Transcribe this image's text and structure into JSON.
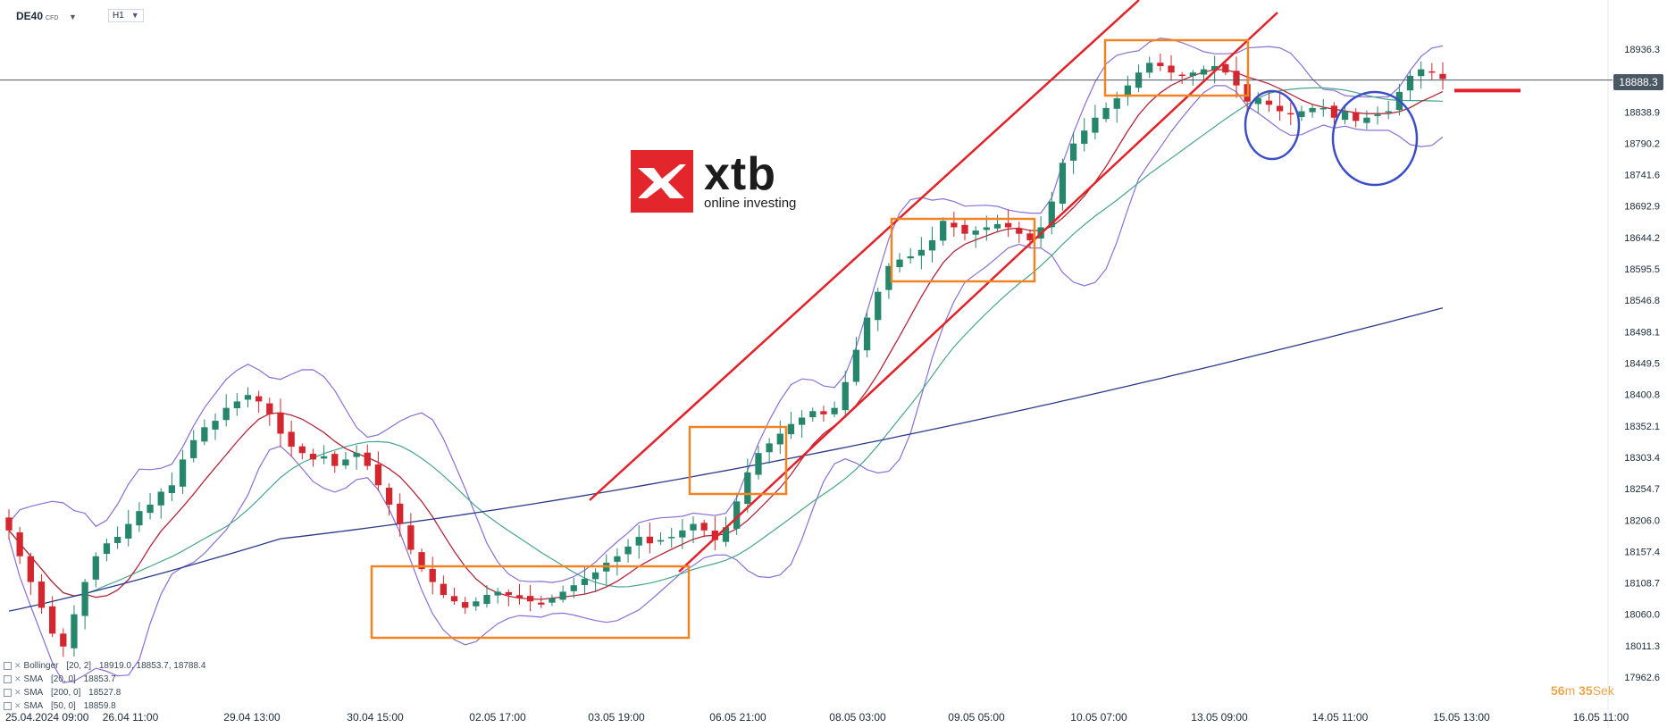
{
  "header": {
    "symbol": "DE40",
    "instrument_type": "CFD",
    "timeframe": "H1"
  },
  "logo": {
    "name": "xtb",
    "tagline": "online investing"
  },
  "legend": [
    {
      "label": "Bollinger",
      "params": "[20, 2]",
      "values": "18919.0, 18853.7, 18788.4"
    },
    {
      "label": "SMA",
      "params": "[20, 0]",
      "values": "18853.7"
    },
    {
      "label": "SMA",
      "params": "[200, 0]",
      "values": "18527.8"
    },
    {
      "label": "SMA",
      "params": "[50, 0]",
      "values": "18859.8"
    }
  ],
  "countdown": {
    "minutes": "56",
    "minutes_unit": "m",
    "seconds": "35",
    "seconds_unit": "Sek"
  },
  "current_price": "18888.3",
  "colors": {
    "up": "#26866c",
    "down": "#d3262e",
    "bollinger": "#8a6fd4",
    "sma20": "#b3263a",
    "sma50": "#47a58a",
    "sma200": "#2a3a8a",
    "channel": "#e32128",
    "box": "#f28322",
    "circle": "#3b4ec9",
    "price_line": "#4a5866"
  },
  "chart_data": {
    "type": "candlestick",
    "y_axis": {
      "ticks": [
        "18936.3",
        "18838.9",
        "18790.2",
        "18741.6",
        "18692.9",
        "18644.2",
        "18595.5",
        "18546.8",
        "18498.1",
        "18449.5",
        "18400.8",
        "18352.1",
        "18303.4",
        "18254.7",
        "18206.0",
        "18157.4",
        "18108.7",
        "18060.0",
        "18011.3",
        "17962.6"
      ],
      "range": [
        17962.6,
        18936.3
      ]
    },
    "x_axis": {
      "ticks": [
        "25.04.2024  09:00",
        "26.04  11:00",
        "29.04  13:00",
        "30.04  15:00",
        "02.05  17:00",
        "03.05  19:00",
        "06.05  21:00",
        "08.05  03:00",
        "09.05  05:00",
        "10.05  07:00",
        "13.05  09:00",
        "14.05  11:00",
        "15.05  13:00",
        "16.05  11:00"
      ]
    },
    "closes": [
      18190,
      18150,
      18110,
      18070,
      18030,
      18010,
      18060,
      18110,
      18150,
      18170,
      18180,
      18200,
      18220,
      18230,
      18250,
      18260,
      18300,
      18330,
      18350,
      18360,
      18380,
      18390,
      18400,
      18390,
      18370,
      18340,
      18320,
      18310,
      18300,
      18305,
      18290,
      18300,
      18310,
      18290,
      18260,
      18230,
      18200,
      18160,
      18130,
      18110,
      18090,
      18080,
      18070,
      18080,
      18090,
      18095,
      18090,
      18085,
      18080,
      18075,
      18085,
      18095,
      18105,
      18115,
      18125,
      18140,
      18150,
      18165,
      18180,
      18170,
      18175,
      18180,
      18190,
      18200,
      18190,
      18175,
      18195,
      18235,
      18280,
      18310,
      18325,
      18340,
      18355,
      18365,
      18375,
      18370,
      18380,
      18420,
      18470,
      18520,
      18560,
      18600,
      18610,
      18615,
      18625,
      18640,
      18670,
      18660,
      18650,
      18655,
      18660,
      18665,
      18660,
      18650,
      18640,
      18660,
      18700,
      18760,
      18790,
      18810,
      18830,
      18845,
      18860,
      18880,
      18900,
      18915,
      18910,
      18900,
      18895,
      18900,
      18905,
      18910,
      18900,
      18880,
      18855,
      18860,
      18850,
      18840,
      18835,
      18840,
      18845,
      18845,
      18830,
      18840,
      18825,
      18830,
      18835,
      18840,
      18870,
      18895,
      18905,
      18900,
      18890
    ],
    "annotations": {
      "channel": "rising trend channel (upper and lower line)",
      "consolidation_boxes": 4,
      "circles": 2,
      "target_line_value": 18872
    }
  }
}
